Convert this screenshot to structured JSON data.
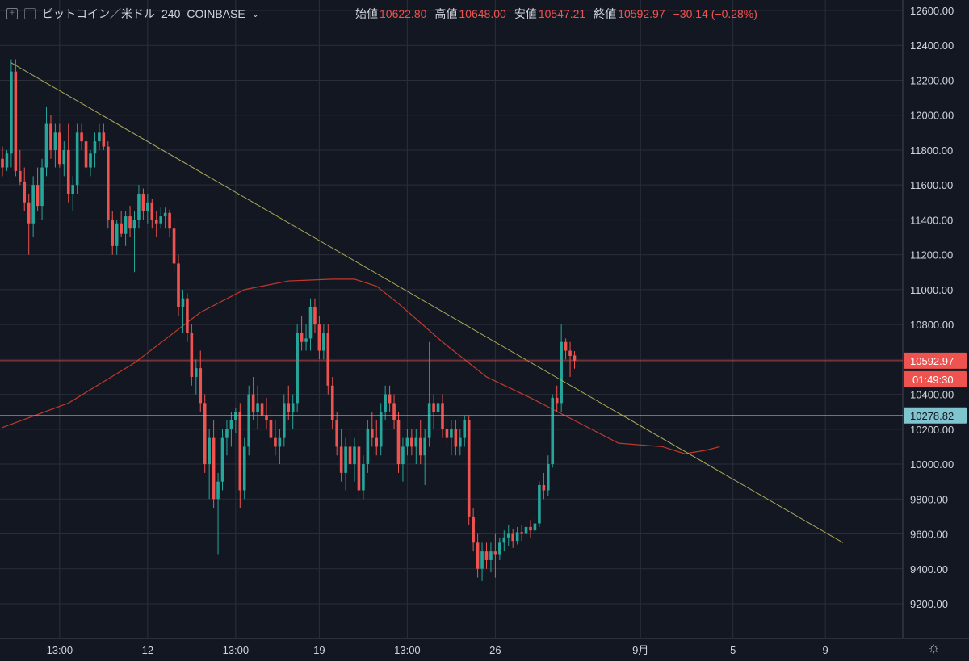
{
  "header": {
    "symbol": "ビットコイン／米ドル",
    "interval": "240",
    "exchange": "COINBASE",
    "open_label": "始値",
    "open_value": "10622.80",
    "high_label": "高値",
    "high_value": "10648.00",
    "low_label": "安値",
    "low_value": "10547.21",
    "close_label": "終値",
    "close_value": "10592.97",
    "change": "−30.14 (−0.28%)",
    "icons": [
      "crosshair-box-icon",
      "compare-icon",
      "chevron-down-icon"
    ]
  },
  "colors": {
    "background": "#131722",
    "up": "#26a69a",
    "down": "#ef5350",
    "trendline": "#a8a855",
    "moving_average": "#c0392b",
    "price_line": "#ef5350",
    "level_line": "#7fc4cf",
    "grid": "#2a2e39"
  },
  "chart_data": {
    "type": "candlestick",
    "title": "ビットコイン／米ドル 240 COINBASE",
    "ylim": [
      9100,
      12700
    ],
    "y_ticks": [
      9200,
      9400,
      9600,
      9800,
      10000,
      10200,
      10400,
      10600,
      10800,
      11000,
      11200,
      11400,
      11600,
      11800,
      12000,
      12200,
      12400,
      12600
    ],
    "y_tick_labels": [
      "9200.00",
      "9400.00",
      "9600.00",
      "9800.00",
      "10000.00",
      "10200.00",
      "10400.00",
      "10600.00",
      "10800.00",
      "11000.00",
      "11200.00",
      "11400.00",
      "11600.00",
      "11800.00",
      "12000.00",
      "12200.00",
      "12400.00",
      "12600.00"
    ],
    "x_tick_labels": [
      "13:00",
      "12",
      "13:00",
      "19",
      "13:00",
      "26",
      "9月",
      "5",
      "9"
    ],
    "x_tick_index": [
      13,
      33,
      53,
      72,
      92,
      112,
      145,
      166,
      187
    ],
    "price_badge": {
      "value": 10592.97,
      "label": "10592.97",
      "countdown": "01:49:30"
    },
    "level_line": {
      "value": 10278.82,
      "label": "10278.82"
    },
    "trendline": {
      "from": {
        "index": 2,
        "value": 12300
      },
      "to": {
        "index": 191,
        "value": 9550
      }
    },
    "moving_average": {
      "index": [
        0,
        15,
        30,
        45,
        55,
        65,
        75,
        80,
        85,
        90,
        100,
        110,
        120,
        130,
        140,
        150,
        155,
        160,
        163
      ],
      "values": [
        10210,
        10350,
        10580,
        10870,
        11000,
        11050,
        11060,
        11060,
        11020,
        10920,
        10700,
        10500,
        10380,
        10250,
        10120,
        10100,
        10060,
        10080,
        10100
      ]
    },
    "candles": [
      [
        11750,
        11820,
        11650,
        11700
      ],
      [
        11700,
        11800,
        11680,
        11780
      ],
      [
        11780,
        12320,
        11700,
        12250
      ],
      [
        12250,
        12320,
        11650,
        11680
      ],
      [
        11680,
        11800,
        11600,
        11620
      ],
      [
        11620,
        11700,
        11450,
        11500
      ],
      [
        11500,
        11550,
        11200,
        11380
      ],
      [
        11380,
        11650,
        11300,
        11600
      ],
      [
        11600,
        11700,
        11450,
        11480
      ],
      [
        11480,
        11750,
        11400,
        11700
      ],
      [
        11700,
        12050,
        11650,
        11950
      ],
      [
        11950,
        12000,
        11750,
        11800
      ],
      [
        11800,
        11950,
        11700,
        11900
      ],
      [
        11900,
        11950,
        11700,
        11720
      ],
      [
        11720,
        11850,
        11650,
        11800
      ],
      [
        11800,
        11950,
        11500,
        11550
      ],
      [
        11550,
        11650,
        11450,
        11600
      ],
      [
        11600,
        11950,
        11550,
        11900
      ],
      [
        11900,
        11950,
        11800,
        11850
      ],
      [
        11850,
        11900,
        11680,
        11700
      ],
      [
        11700,
        11800,
        11650,
        11780
      ],
      [
        11780,
        11900,
        11700,
        11850
      ],
      [
        11850,
        11950,
        11800,
        11900
      ],
      [
        11900,
        11950,
        11800,
        11820
      ],
      [
        11820,
        11850,
        11350,
        11400
      ],
      [
        11400,
        11450,
        11200,
        11250
      ],
      [
        11250,
        11400,
        11200,
        11380
      ],
      [
        11380,
        11450,
        11300,
        11320
      ],
      [
        11320,
        11450,
        11250,
        11420
      ],
      [
        11420,
        11480,
        11300,
        11350
      ],
      [
        11350,
        11450,
        11100,
        11400
      ],
      [
        11400,
        11600,
        11350,
        11550
      ],
      [
        11550,
        11580,
        11400,
        11450
      ],
      [
        11450,
        11550,
        11380,
        11500
      ],
      [
        11500,
        11520,
        11350,
        11400
      ],
      [
        11400,
        11450,
        11300,
        11380
      ],
      [
        11380,
        11470,
        11350,
        11420
      ],
      [
        11420,
        11470,
        11350,
        11440
      ],
      [
        11440,
        11460,
        11300,
        11350
      ],
      [
        11350,
        11400,
        11100,
        11150
      ],
      [
        11150,
        11200,
        10850,
        10900
      ],
      [
        10900,
        11000,
        10750,
        10950
      ],
      [
        10950,
        10980,
        10700,
        10750
      ],
      [
        10750,
        10800,
        10450,
        10500
      ],
      [
        10500,
        10600,
        10400,
        10550
      ],
      [
        10550,
        10650,
        10300,
        10350
      ],
      [
        10350,
        10400,
        9950,
        10000
      ],
      [
        10000,
        10200,
        9800,
        10150
      ],
      [
        10150,
        10250,
        9750,
        9800
      ],
      [
        9800,
        9950,
        9480,
        9900
      ],
      [
        9900,
        10200,
        9850,
        10150
      ],
      [
        10150,
        10250,
        10050,
        10200
      ],
      [
        10200,
        10300,
        10100,
        10250
      ],
      [
        10250,
        10320,
        10180,
        10300
      ],
      [
        10300,
        10350,
        9750,
        9850
      ],
      [
        9850,
        10150,
        9800,
        10100
      ],
      [
        10100,
        10450,
        10050,
        10400
      ],
      [
        10400,
        10500,
        10250,
        10300
      ],
      [
        10300,
        10450,
        10200,
        10350
      ],
      [
        10350,
        10400,
        10250,
        10280
      ],
      [
        10280,
        10380,
        10200,
        10250
      ],
      [
        10250,
        10350,
        10100,
        10150
      ],
      [
        10150,
        10250,
        10050,
        10100
      ],
      [
        10100,
        10200,
        10000,
        10150
      ],
      [
        10150,
        10400,
        10100,
        10350
      ],
      [
        10350,
        10450,
        10250,
        10300
      ],
      [
        10300,
        10400,
        10200,
        10350
      ],
      [
        10350,
        10800,
        10300,
        10750
      ],
      [
        10750,
        10850,
        10650,
        10700
      ],
      [
        10700,
        10800,
        10650,
        10720
      ],
      [
        10720,
        10950,
        10650,
        10900
      ],
      [
        10900,
        10950,
        10750,
        10800
      ],
      [
        10800,
        10850,
        10600,
        10650
      ],
      [
        10650,
        10800,
        10600,
        10750
      ],
      [
        10750,
        10800,
        10400,
        10450
      ],
      [
        10450,
        10500,
        10200,
        10250
      ],
      [
        10250,
        10300,
        10050,
        10100
      ],
      [
        10100,
        10200,
        9900,
        9950
      ],
      [
        9950,
        10150,
        9850,
        10100
      ],
      [
        10100,
        10200,
        9950,
        10000
      ],
      [
        10000,
        10150,
        9900,
        10100
      ],
      [
        10100,
        10200,
        9800,
        9850
      ],
      [
        9850,
        10050,
        9800,
        10000
      ],
      [
        10000,
        10250,
        9950,
        10200
      ],
      [
        10200,
        10300,
        10100,
        10150
      ],
      [
        10150,
        10250,
        10050,
        10100
      ],
      [
        10100,
        10350,
        10050,
        10300
      ],
      [
        10300,
        10450,
        10250,
        10400
      ],
      [
        10400,
        10450,
        10300,
        10350
      ],
      [
        10350,
        10400,
        10200,
        10250
      ],
      [
        10250,
        10300,
        9950,
        10000
      ],
      [
        10000,
        10150,
        9900,
        10100
      ],
      [
        10100,
        10200,
        10050,
        10150
      ],
      [
        10150,
        10200,
        10050,
        10100
      ],
      [
        10100,
        10200,
        10000,
        10150
      ],
      [
        10150,
        10250,
        10000,
        10050
      ],
      [
        10050,
        10200,
        9880,
        10150
      ],
      [
        10150,
        10700,
        10100,
        10350
      ],
      [
        10350,
        10400,
        10200,
        10300
      ],
      [
        10300,
        10380,
        10250,
        10350
      ],
      [
        10350,
        10400,
        10150,
        10200
      ],
      [
        10200,
        10300,
        10100,
        10150
      ],
      [
        10150,
        10250,
        10050,
        10200
      ],
      [
        10200,
        10250,
        10050,
        10100
      ],
      [
        10100,
        10200,
        10050,
        10150
      ],
      [
        10150,
        10280,
        10100,
        10250
      ],
      [
        10250,
        10280,
        9650,
        9700
      ],
      [
        9700,
        9750,
        9500,
        9550
      ],
      [
        9550,
        9600,
        9350,
        9400
      ],
      [
        9400,
        9550,
        9330,
        9500
      ],
      [
        9500,
        9550,
        9400,
        9450
      ],
      [
        9450,
        9550,
        9380,
        9500
      ],
      [
        9500,
        9600,
        9350,
        9480
      ],
      [
        9480,
        9580,
        9450,
        9550
      ],
      [
        9550,
        9620,
        9500,
        9580
      ],
      [
        9580,
        9650,
        9530,
        9600
      ],
      [
        9600,
        9630,
        9520,
        9560
      ],
      [
        9560,
        9640,
        9540,
        9610
      ],
      [
        9610,
        9650,
        9560,
        9600
      ],
      [
        9600,
        9670,
        9580,
        9640
      ],
      [
        9640,
        9680,
        9580,
        9620
      ],
      [
        9620,
        9700,
        9600,
        9660
      ],
      [
        9660,
        9900,
        9640,
        9880
      ],
      [
        9880,
        9950,
        9800,
        9850
      ],
      [
        9850,
        10050,
        9820,
        10000
      ],
      [
        10000,
        10400,
        9980,
        10380
      ],
      [
        10380,
        10450,
        10300,
        10350
      ],
      [
        10350,
        10800,
        10300,
        10700
      ],
      [
        10700,
        10720,
        10600,
        10650
      ],
      [
        10650,
        10700,
        10500,
        10620
      ],
      [
        10623,
        10648,
        10547,
        10593
      ]
    ]
  }
}
